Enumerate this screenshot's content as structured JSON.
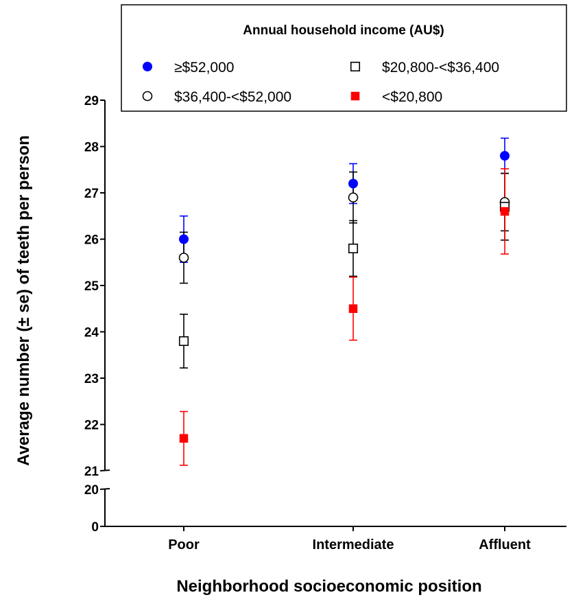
{
  "chart_data": {
    "type": "scatter",
    "title": "",
    "xlabel": "Neighborhood socioeconomic position",
    "ylabel": "Average number (± se) of teeth per person",
    "categories": [
      "Poor",
      "Intermediate",
      "Affluent"
    ],
    "y_scale": "broken axis: 0–20 compressed, 21–29 linear",
    "ylim": [
      0,
      29
    ],
    "y_ticks": [
      0,
      20,
      21,
      22,
      23,
      24,
      25,
      26,
      27,
      28,
      29
    ],
    "legend": {
      "title": "Annual household income (AU$)",
      "placement": "top"
    },
    "series": [
      {
        "name": "≥$52,000",
        "marker": "filled-circle",
        "color": "#0000ff",
        "errorbar_color": "#0000ff",
        "values": [
          26.0,
          27.2,
          27.8
        ],
        "se": [
          0.5,
          0.43,
          0.38
        ]
      },
      {
        "name": "$36,400-<$52,000",
        "marker": "open-circle",
        "color": "#000000",
        "errorbar_color": "#000000",
        "values": [
          25.6,
          26.9,
          26.8
        ],
        "se": [
          0.55,
          0.55,
          0.62
        ]
      },
      {
        "name": "$20,800-<$36,400",
        "marker": "open-square",
        "color": "#000000",
        "errorbar_color": "#000000",
        "values": [
          23.8,
          25.8,
          26.7
        ],
        "se": [
          0.58,
          0.6,
          0.72
        ]
      },
      {
        "name": "<$20,800",
        "marker": "filled-square",
        "color": "#ff0000",
        "errorbar_color": "#ff0000",
        "values": [
          21.7,
          24.5,
          26.6
        ],
        "se": [
          0.58,
          0.68,
          0.92
        ]
      }
    ]
  }
}
